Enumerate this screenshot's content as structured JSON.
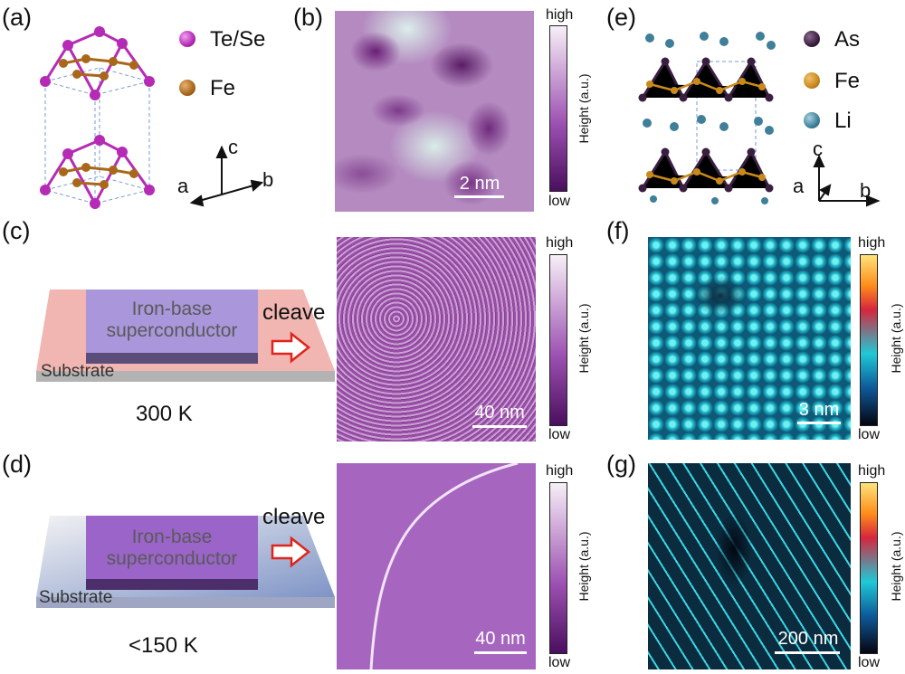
{
  "panels": {
    "a": {
      "label": "(a)",
      "legend": [
        {
          "text": "Te/Se",
          "color": "#b52bb5"
        },
        {
          "text": "Fe",
          "color": "#a8671a"
        }
      ],
      "axes": {
        "c": "c",
        "a": "a",
        "b": "b"
      }
    },
    "b": {
      "label": "(b)",
      "scale": "2 nm",
      "cb_high": "high",
      "cb_low": "low",
      "cb_title": "Height (a.u.)"
    },
    "c": {
      "label": "(c)",
      "device_line1": "Iron-base",
      "device_line2": "superconductor",
      "substrate": "Substrate",
      "action": "cleave",
      "temperature": "300 K",
      "scale": "40 nm",
      "cb_high": "high",
      "cb_low": "low",
      "cb_title": "Height (a.u.)"
    },
    "d": {
      "label": "(d)",
      "device_line1": "Iron-base",
      "device_line2": "superconductor",
      "substrate": "Substrate",
      "action": "cleave",
      "temperature": "<150 K",
      "scale": "40 nm",
      "cb_high": "high",
      "cb_low": "low",
      "cb_title": "Height (a.u.)"
    },
    "e": {
      "label": "(e)",
      "legend": [
        {
          "text": "As",
          "color": "#3a1f40"
        },
        {
          "text": "Fe",
          "color": "#c98a1a"
        },
        {
          "text": "Li",
          "color": "#3f7f9a"
        }
      ],
      "axes": {
        "c": "c",
        "a": "a",
        "b": "b"
      }
    },
    "f": {
      "label": "(f)",
      "scale": "3 nm",
      "cb_high": "high",
      "cb_low": "low",
      "cb_title": "Height (a.u.)"
    },
    "g": {
      "label": "(g)",
      "scale": "200 nm",
      "cb_high": "high",
      "cb_low": "low",
      "cb_title": "Height (a.u.)"
    }
  }
}
